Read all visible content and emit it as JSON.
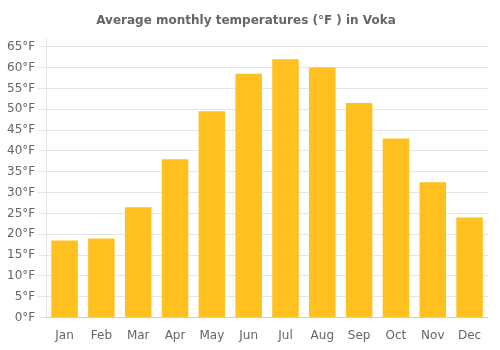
{
  "chart_data": {
    "type": "bar",
    "title": "Average monthly temperatures (°F ) in Voka",
    "categories": [
      "Jan",
      "Feb",
      "Mar",
      "Apr",
      "May",
      "Jun",
      "Jul",
      "Aug",
      "Sep",
      "Oct",
      "Nov",
      "Dec"
    ],
    "values": [
      18.5,
      19.0,
      26.5,
      38.0,
      49.5,
      58.5,
      62.0,
      60.0,
      51.5,
      43.0,
      32.5,
      24.0
    ],
    "color": "#FFC020",
    "ylim": [
      0,
      67
    ],
    "yticks": [
      {
        "value": 0,
        "label": "0°F"
      },
      {
        "value": 5,
        "label": "5°F"
      },
      {
        "value": 10,
        "label": "10°F"
      },
      {
        "value": 15,
        "label": "15°F"
      },
      {
        "value": 20,
        "label": "20°F"
      },
      {
        "value": 25,
        "label": "25°F"
      },
      {
        "value": 30,
        "label": "30°F"
      },
      {
        "value": 35,
        "label": "35°F"
      },
      {
        "value": 40,
        "label": "40°F"
      },
      {
        "value": 45,
        "label": "45°F"
      },
      {
        "value": 50,
        "label": "50°F"
      },
      {
        "value": 55,
        "label": "55°F"
      },
      {
        "value": 60,
        "label": "60°F"
      },
      {
        "value": 65,
        "label": "65°F"
      }
    ],
    "grid": true
  }
}
